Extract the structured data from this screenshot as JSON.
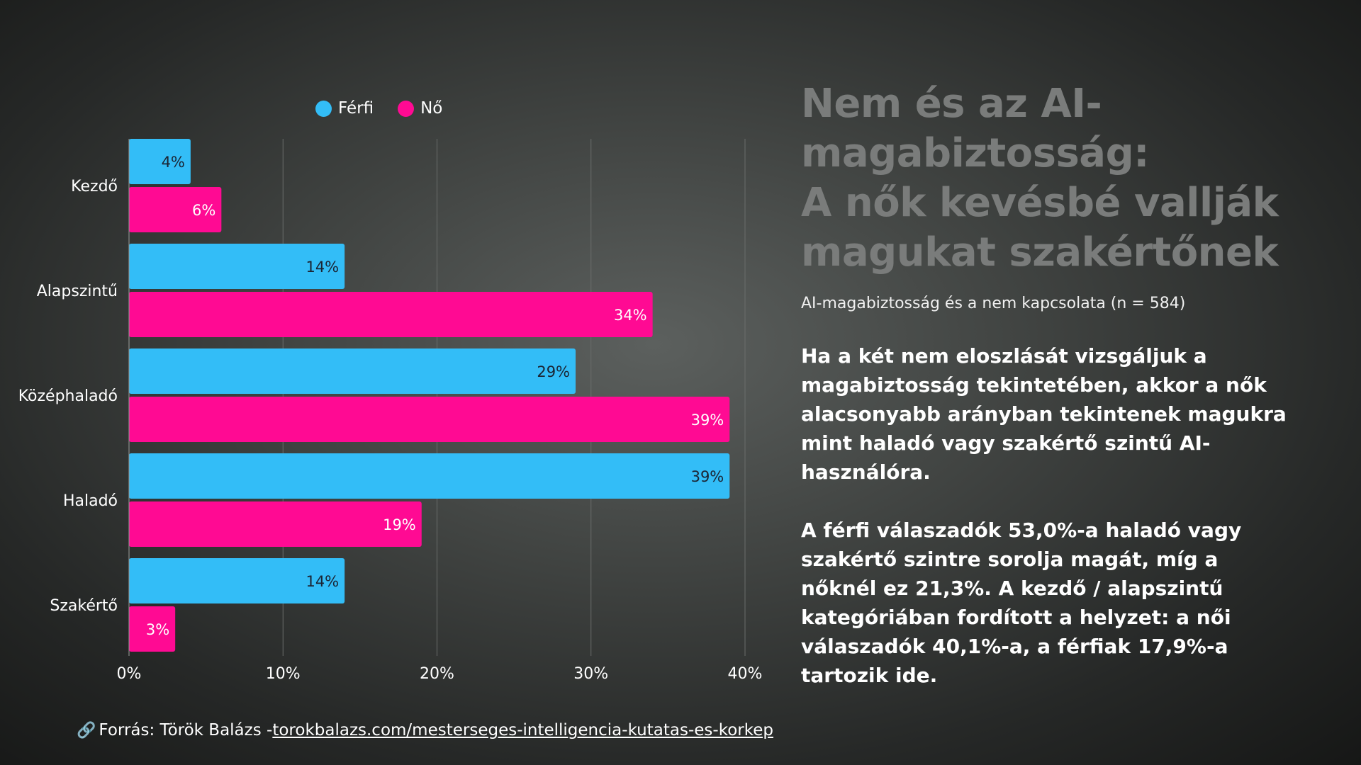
{
  "title_lines": [
    "Nem és az AI-",
    "magabiztosság:",
    "A nők kevésbé vallják",
    "magukat szakértőnek"
  ],
  "subtitle": "AI-magabiztosság és a nem kapcsolata (n = 584)",
  "paragraph1": "Ha a két nem eloszlását vizsgáljuk a magabiztosság tekintetében, akkor a nők alacsonyabb arányban tekintenek magukra mint haladó vagy szakértő szintű AI-használóra.",
  "paragraph2": "A férfi válaszadók 53,0%-a haladó vagy szakértő szintre sorolja magát, míg a nőknél ez 21,3%. A kezdő / alapszintű kategóriában fordított a helyzet: a női válaszadók 40,1%-a, a férfiak 17,9%-a tartozik ide.",
  "source": {
    "icon": "link-icon",
    "prefix": "Forrás: Török Balázs - ",
    "link_text": "torokbalazs.com/mesterseges-intelligencia-kutatas-es-korkep"
  },
  "chart_data": {
    "type": "bar",
    "orientation": "horizontal",
    "categories": [
      "Kezdő",
      "Alapszintű",
      "Középhaladó",
      "Haladó",
      "Szakértő"
    ],
    "series": [
      {
        "name": "Férfi",
        "color": "#33bdf7",
        "values": [
          4,
          14,
          29,
          39,
          14
        ],
        "labels": [
          "4%",
          "14%",
          "29%",
          "39%",
          "14%"
        ],
        "label_color": "#1b2433"
      },
      {
        "name": "Nő",
        "color": "#ff0a93",
        "values": [
          6,
          34,
          39,
          19,
          3
        ],
        "labels": [
          "6%",
          "34%",
          "39%",
          "19%",
          "3%"
        ],
        "label_color": "#ffffff"
      }
    ],
    "xlim": [
      0,
      40
    ],
    "xticks": [
      0,
      10,
      20,
      30,
      40
    ],
    "xtick_labels": [
      "0%",
      "10%",
      "20%",
      "30%",
      "40%"
    ],
    "grid": "vertical",
    "legend": "top"
  }
}
